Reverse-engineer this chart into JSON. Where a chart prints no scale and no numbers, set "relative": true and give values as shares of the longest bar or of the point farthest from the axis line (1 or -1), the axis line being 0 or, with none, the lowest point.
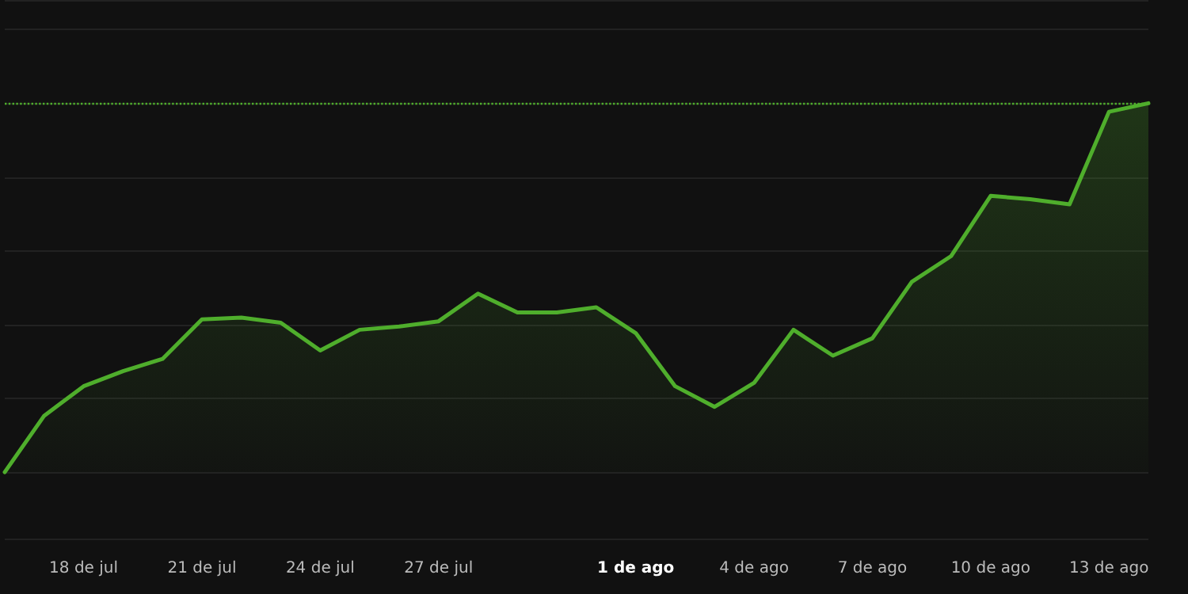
{
  "chart_data": {
    "type": "area",
    "relative": true,
    "grid": "y",
    "marker": "none",
    "line_style": "solid",
    "categories": [
      null,
      null,
      "18 de jul",
      null,
      null,
      "21 de jul",
      null,
      null,
      "24 de jul",
      null,
      null,
      "27 de jul",
      null,
      null,
      null,
      null,
      "1 de ago",
      null,
      null,
      "4 de ago",
      null,
      null,
      "7 de ago",
      null,
      null,
      "10 de ago",
      null,
      null,
      "13 de ago",
      null
    ],
    "series": [
      {
        "color": "#4fae2c",
        "values": [
          0,
          0.153,
          0.233,
          0.274,
          0.307,
          0.414,
          0.419,
          0.405,
          0.33,
          0.386,
          0.395,
          0.409,
          0.484,
          0.433,
          0.433,
          0.447,
          0.377,
          0.233,
          0.177,
          0.242,
          0.386,
          0.316,
          0.363,
          0.516,
          0.586,
          0.749,
          0.74,
          0.726,
          0.977,
          1
        ]
      }
    ],
    "ref_lines": [
      {
        "axis": "y",
        "value": 1,
        "color": "#4fae2c",
        "line_style": "dotted"
      }
    ]
  }
}
